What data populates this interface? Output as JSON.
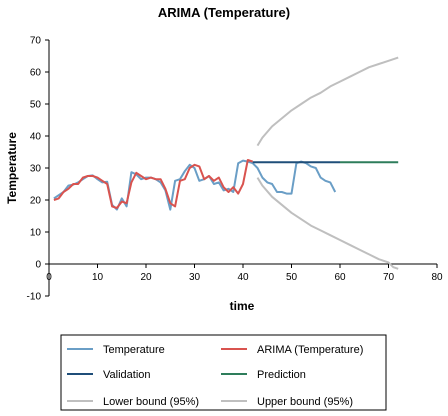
{
  "chart_data": {
    "type": "line",
    "title": "ARIMA (Temperature)",
    "xlabel": "time",
    "ylabel": "Temperature",
    "xlim": [
      0,
      80
    ],
    "ylim": [
      -10,
      70
    ],
    "xticks": [
      0,
      10,
      20,
      30,
      40,
      50,
      60,
      70,
      80
    ],
    "yticks": [
      -10,
      0,
      10,
      20,
      30,
      40,
      50,
      60,
      70
    ],
    "grid": false,
    "legend_position": "bottom",
    "series": [
      {
        "name": "Temperature",
        "color": "#6a9ec6",
        "x": [
          1,
          2,
          3,
          4,
          5,
          6,
          7,
          8,
          9,
          10,
          11,
          12,
          13,
          14,
          15,
          16,
          17,
          18,
          19,
          20,
          21,
          22,
          23,
          24,
          25,
          26,
          27,
          28,
          29,
          30,
          31,
          32,
          33,
          34,
          35,
          36,
          37,
          38,
          39,
          40,
          41,
          42,
          43,
          44,
          45,
          46,
          47,
          48,
          49,
          50,
          51,
          52,
          53,
          54,
          55,
          56,
          57,
          58,
          59,
          60
        ],
        "y": [
          20.5,
          21.5,
          22.5,
          24.5,
          24.8,
          25.5,
          26.5,
          27.5,
          27.7,
          26.5,
          25.5,
          25.7,
          18.5,
          17.0,
          20.5,
          18.0,
          28.7,
          28.0,
          26.5,
          27.0,
          27.0,
          26.5,
          25.5,
          23.0,
          17.0,
          26.0,
          26.5,
          29.0,
          31.0,
          30.0,
          26.0,
          26.5,
          27.5,
          25.0,
          25.5,
          23.0,
          23.5,
          22.5,
          31.5,
          32.3,
          32.0,
          31.5,
          30.0,
          27.0,
          25.5,
          25.0,
          22.5,
          22.5,
          22.0,
          22.0,
          31.5,
          32.0,
          31.5,
          30.5,
          30.0,
          27.0,
          26.0,
          25.5,
          22.5,
          null
        ]
      },
      {
        "name": "ARIMA (Temperature)",
        "color": "#d9534f",
        "x": [
          1,
          2,
          3,
          4,
          5,
          6,
          7,
          8,
          9,
          10,
          11,
          12,
          13,
          14,
          15,
          16,
          17,
          18,
          19,
          20,
          21,
          22,
          23,
          24,
          25,
          26,
          27,
          28,
          29,
          30,
          31,
          32,
          33,
          34,
          35,
          36,
          37,
          38,
          39,
          40,
          41,
          42
        ],
        "y": [
          20.0,
          20.5,
          22.5,
          23.5,
          25.0,
          25.0,
          27.0,
          27.5,
          27.5,
          27.0,
          26.0,
          25.0,
          18.0,
          17.5,
          19.5,
          19.0,
          25.5,
          28.5,
          27.5,
          26.5,
          27.0,
          26.5,
          26.5,
          23.5,
          19.0,
          18.0,
          26.0,
          26.5,
          30.0,
          31.0,
          30.5,
          26.5,
          27.5,
          26.0,
          27.0,
          24.0,
          22.5,
          24.0,
          22.0,
          25.0,
          32.5,
          32.0
        ]
      },
      {
        "name": "Validation",
        "color": "#1f4e79",
        "x": [
          42,
          60
        ],
        "y": [
          31.8,
          31.8
        ]
      },
      {
        "name": "Prediction",
        "color": "#2e7d5b",
        "x": [
          60,
          72
        ],
        "y": [
          31.8,
          31.8
        ]
      },
      {
        "name": "Lower bound (95%)",
        "color": "#bfbfbf",
        "x": [
          43,
          44,
          46,
          48,
          50,
          52,
          54,
          56,
          58,
          60,
          62,
          64,
          66,
          68,
          70,
          71,
          72
        ],
        "y": [
          27.0,
          24.5,
          21.0,
          18.5,
          16.0,
          14.0,
          12.0,
          10.5,
          9.0,
          7.5,
          6.0,
          4.5,
          3.0,
          1.5,
          0.5,
          -1.0,
          -1.5
        ]
      },
      {
        "name": "Upper bound (95%)",
        "color": "#bfbfbf",
        "x": [
          43,
          44,
          46,
          48,
          50,
          52,
          54,
          56,
          58,
          60,
          62,
          64,
          66,
          68,
          70,
          72
        ],
        "y": [
          37.0,
          39.5,
          43.0,
          45.5,
          48.0,
          50.0,
          52.0,
          53.5,
          55.5,
          57.0,
          58.5,
          60.0,
          61.5,
          62.5,
          63.5,
          64.5
        ]
      }
    ]
  }
}
